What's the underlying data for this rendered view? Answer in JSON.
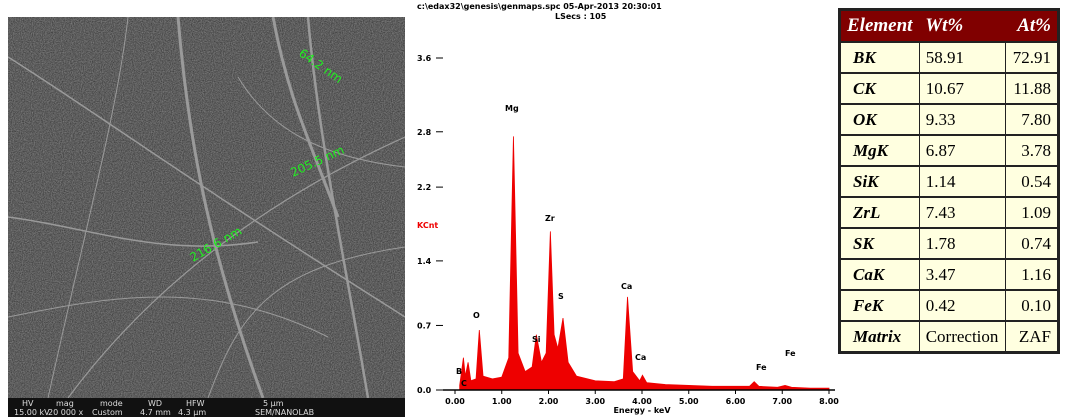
{
  "sem_image": {
    "measurements": [
      "64.2 nm",
      "205.5 nm",
      "216.6 nm"
    ],
    "info_bar": {
      "headers": [
        "HV",
        "mag",
        "mode",
        "WD",
        "HFW",
        "5 µm"
      ],
      "values": [
        "15.00 kV",
        "20 000 x",
        "Custom",
        "4.7 mm",
        "4.3 µm",
        "SEM/NANOLAB"
      ]
    }
  },
  "chart_data": {
    "type": "area",
    "title": "c:\\edax32\\genesis\\genmaps.spc 05-Apr-2013 20:30:01",
    "subtitle": "LSecs : 105",
    "y_label": "KCnt",
    "x_label": "Energy - keV",
    "color": "#ee0000",
    "xlim": [
      0,
      8
    ],
    "ylim": [
      0,
      3.6
    ],
    "xticks": [
      {
        "value": 0,
        "label": "0.00"
      },
      {
        "value": 1,
        "label": "1.00"
      },
      {
        "value": 2,
        "label": "2.00"
      },
      {
        "value": 3,
        "label": "3.00"
      },
      {
        "value": 4,
        "label": "4.00"
      },
      {
        "value": 5,
        "label": "5.00"
      },
      {
        "value": 6,
        "label": "6.00"
      },
      {
        "value": 7,
        "label": "7.00"
      },
      {
        "value": 8,
        "label": "8.00"
      }
    ],
    "yticks": [
      {
        "value": 0,
        "label": "0.0"
      },
      0.7,
      1.4,
      2.2,
      2.8,
      3.6
    ],
    "x": [
      0.1,
      0.18,
      0.22,
      0.28,
      0.34,
      0.45,
      0.52,
      0.6,
      0.8,
      1.0,
      1.15,
      1.25,
      1.35,
      1.5,
      1.65,
      1.74,
      1.85,
      1.95,
      2.04,
      2.12,
      2.2,
      2.31,
      2.42,
      2.6,
      3.0,
      3.4,
      3.6,
      3.69,
      3.8,
      3.95,
      4.01,
      4.1,
      4.5,
      5.0,
      5.5,
      6.0,
      6.3,
      6.4,
      6.5,
      6.9,
      7.06,
      7.2,
      7.6,
      8.0
    ],
    "values": [
      0.05,
      0.35,
      0.15,
      0.3,
      0.1,
      0.12,
      0.65,
      0.15,
      0.12,
      0.14,
      0.35,
      2.75,
      0.4,
      0.2,
      0.25,
      0.6,
      0.3,
      0.4,
      1.72,
      0.6,
      0.45,
      0.78,
      0.3,
      0.15,
      0.1,
      0.09,
      0.12,
      1.01,
      0.2,
      0.1,
      0.16,
      0.08,
      0.06,
      0.05,
      0.04,
      0.04,
      0.04,
      0.09,
      0.04,
      0.03,
      0.05,
      0.03,
      0.02,
      0.02
    ],
    "annotations": [
      "B",
      "C",
      "O",
      "Mg",
      "Si",
      "Zr",
      "S",
      "Ca",
      "Ca",
      "Fe",
      "Fe"
    ]
  },
  "table": {
    "header": [
      "Element",
      "Wt%",
      "At%"
    ],
    "rows": [
      [
        "BK",
        "58.91",
        "72.91"
      ],
      [
        "CK",
        "10.67",
        "11.88"
      ],
      [
        "OK",
        "9.33",
        "7.80"
      ],
      [
        "MgK",
        "6.87",
        "3.78"
      ],
      [
        "SiK",
        "1.14",
        "0.54"
      ],
      [
        "ZrL",
        "7.43",
        "1.09"
      ],
      [
        "SK",
        "1.78",
        "0.74"
      ],
      [
        "CaK",
        "3.47",
        "1.16"
      ],
      [
        "FeK",
        "0.42",
        "0.10"
      ],
      [
        "Matrix",
        "Correction",
        "ZAF"
      ]
    ]
  }
}
